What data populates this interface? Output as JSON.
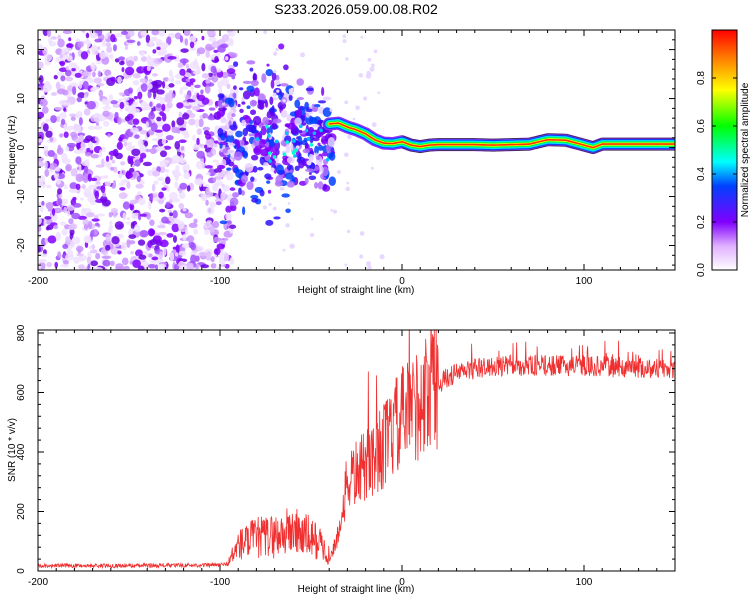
{
  "title": "S233.2026.059.00.08.R02",
  "chart_data": [
    {
      "type": "heatmap",
      "xlabel": "Height of straight line (km)",
      "ylabel": "Frequency (Hz)",
      "xlim": [
        -200,
        150
      ],
      "ylim": [
        -25,
        24
      ],
      "xticks": [
        -200,
        -100,
        0,
        100
      ],
      "yticks": [
        -20,
        -10,
        0,
        10,
        20
      ],
      "ridge": [
        [
          -40,
          4.8
        ],
        [
          -35,
          5.0
        ],
        [
          -30,
          4.2
        ],
        [
          -25,
          3.6
        ],
        [
          -20,
          2.8
        ],
        [
          -15,
          1.6
        ],
        [
          -10,
          0.9
        ],
        [
          -5,
          0.8
        ],
        [
          0,
          1.2
        ],
        [
          5,
          0.5
        ],
        [
          10,
          0.2
        ],
        [
          15,
          0.5
        ],
        [
          20,
          0.6
        ],
        [
          30,
          0.6
        ],
        [
          40,
          0.6
        ],
        [
          50,
          0.5
        ],
        [
          60,
          0.6
        ],
        [
          70,
          0.7
        ],
        [
          80,
          1.6
        ],
        [
          90,
          1.5
        ],
        [
          100,
          0.5
        ],
        [
          105,
          0.0
        ],
        [
          110,
          0.7
        ],
        [
          120,
          0.7
        ],
        [
          130,
          0.7
        ],
        [
          140,
          0.7
        ],
        [
          150,
          0.7
        ]
      ],
      "colorbar": {
        "label": "Normalized spectral amplitude",
        "range": [
          0,
          1
        ],
        "ticks": [
          "0.0",
          "0.2",
          "0.4",
          "0.6",
          "0.8"
        ]
      }
    },
    {
      "type": "line",
      "xlabel": "Height of straight line (km)",
      "ylabel": "SNR (10 * v/v)",
      "xlim": [
        -200,
        150
      ],
      "ylim": [
        0,
        810
      ],
      "xticks": [
        -200,
        -100,
        0,
        100
      ],
      "yticks": [
        0,
        200,
        400,
        600,
        800
      ],
      "line_color": "#f03030",
      "envelope": [
        [
          -200,
          18
        ],
        [
          -150,
          18
        ],
        [
          -100,
          20
        ],
        [
          -95,
          25
        ],
        [
          -90,
          70
        ],
        [
          -80,
          90
        ],
        [
          -70,
          95
        ],
        [
          -60,
          110
        ],
        [
          -50,
          90
        ],
        [
          -45,
          75
        ],
        [
          -40,
          40
        ],
        [
          -35,
          120
        ],
        [
          -30,
          300
        ],
        [
          -25,
          330
        ],
        [
          -20,
          350
        ],
        [
          -15,
          390
        ],
        [
          -10,
          420
        ],
        [
          -5,
          470
        ],
        [
          0,
          510
        ],
        [
          5,
          540
        ],
        [
          10,
          570
        ],
        [
          15,
          600
        ],
        [
          20,
          630
        ],
        [
          25,
          650
        ],
        [
          30,
          665
        ],
        [
          40,
          680
        ],
        [
          50,
          685
        ],
        [
          60,
          690
        ],
        [
          80,
          690
        ],
        [
          100,
          690
        ],
        [
          120,
          685
        ],
        [
          150,
          680
        ]
      ]
    }
  ]
}
